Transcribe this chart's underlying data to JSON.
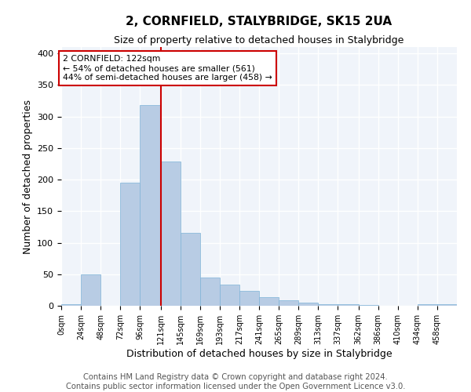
{
  "title": "2, CORNFIELD, STALYBRIDGE, SK15 2UA",
  "subtitle": "Size of property relative to detached houses in Stalybridge",
  "xlabel": "Distribution of detached houses by size in Stalybridge",
  "ylabel": "Number of detached properties",
  "bar_color": "#b8cce4",
  "bar_edge_color": "#7eb3d8",
  "background_color": "#f0f4fa",
  "grid_color": "#ffffff",
  "vline_x": 121,
  "vline_color": "#cc0000",
  "annotation_text": "2 CORNFIELD: 122sqm\n← 54% of detached houses are smaller (561)\n44% of semi-detached houses are larger (458) →",
  "annotation_box_color": "#ffffff",
  "annotation_box_edge": "#cc0000",
  "bins": [
    0,
    24,
    48,
    72,
    96,
    121,
    145,
    169,
    193,
    217,
    241,
    265,
    289,
    313,
    337,
    362,
    386,
    410,
    434,
    458,
    482
  ],
  "counts": [
    2,
    50,
    0,
    195,
    318,
    228,
    115,
    45,
    33,
    23,
    14,
    9,
    5,
    3,
    2,
    1,
    0,
    0,
    3,
    2
  ],
  "ylim": [
    0,
    410
  ],
  "yticks": [
    0,
    50,
    100,
    150,
    200,
    250,
    300,
    350,
    400
  ],
  "footer_text": "Contains HM Land Registry data © Crown copyright and database right 2024.\nContains public sector information licensed under the Open Government Licence v3.0.",
  "footer_fontsize": 7.2,
  "title_fontsize": 11,
  "subtitle_fontsize": 9
}
